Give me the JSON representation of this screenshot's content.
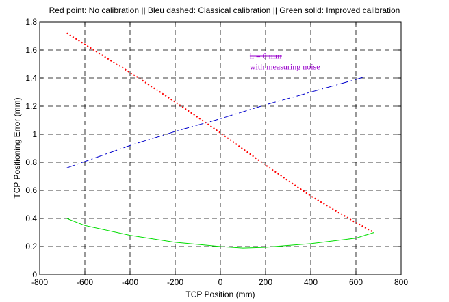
{
  "chart_data": {
    "type": "line",
    "title": "Red point: No calibration || Bleu dashed: Classical calibration || Green solid: Improved calibration",
    "xlabel": "TCP Position (mm)",
    "ylabel": "TCP Positioning Error (mm)",
    "xlim": [
      -800,
      800
    ],
    "ylim": [
      0,
      1.8
    ],
    "xticks": [
      -800,
      -600,
      -400,
      -200,
      0,
      200,
      400,
      600,
      800
    ],
    "xtick_labels": [
      "-800",
      "-600",
      "-400",
      "-200",
      "0",
      "200",
      "400",
      "600",
      "800"
    ],
    "yticks": [
      0,
      0.2,
      0.4,
      0.6,
      0.8,
      1,
      1.2,
      1.4,
      1.6,
      1.8
    ],
    "ytick_labels": [
      "0",
      "0.2",
      "0.4",
      "0.6",
      "0.8",
      "1",
      "1.2",
      "1.4",
      "1.6",
      "1.8"
    ],
    "grid": true,
    "series": [
      {
        "color": "#ff0000",
        "style": "dotted",
        "x": [
          -680,
          -400,
          -200,
          0,
          200,
          400,
          600,
          680
        ],
        "y": [
          1.72,
          1.44,
          1.23,
          1.01,
          0.78,
          0.56,
          0.37,
          0.3
        ]
      },
      {
        "color": "#0000cc",
        "style": "dashdot",
        "x": [
          -680,
          -400,
          -200,
          0,
          200,
          400,
          600,
          640
        ],
        "y": [
          0.76,
          0.92,
          1.02,
          1.11,
          1.21,
          1.3,
          1.39,
          1.41
        ]
      },
      {
        "color": "#00dd00",
        "style": "solid",
        "x": [
          -680,
          -600,
          -400,
          -200,
          0,
          100,
          200,
          400,
          600,
          680
        ],
        "y": [
          0.4,
          0.35,
          0.28,
          0.23,
          0.2,
          0.19,
          0.195,
          0.22,
          0.26,
          0.3
        ]
      }
    ],
    "annotations": [
      {
        "text": "h = 0 mm",
        "x": 130,
        "y": 1.54,
        "color": "#9900cc",
        "strikethrough": true
      },
      {
        "text": "with measuring noise",
        "x": 130,
        "y": 1.46,
        "color": "#9900cc"
      }
    ]
  }
}
